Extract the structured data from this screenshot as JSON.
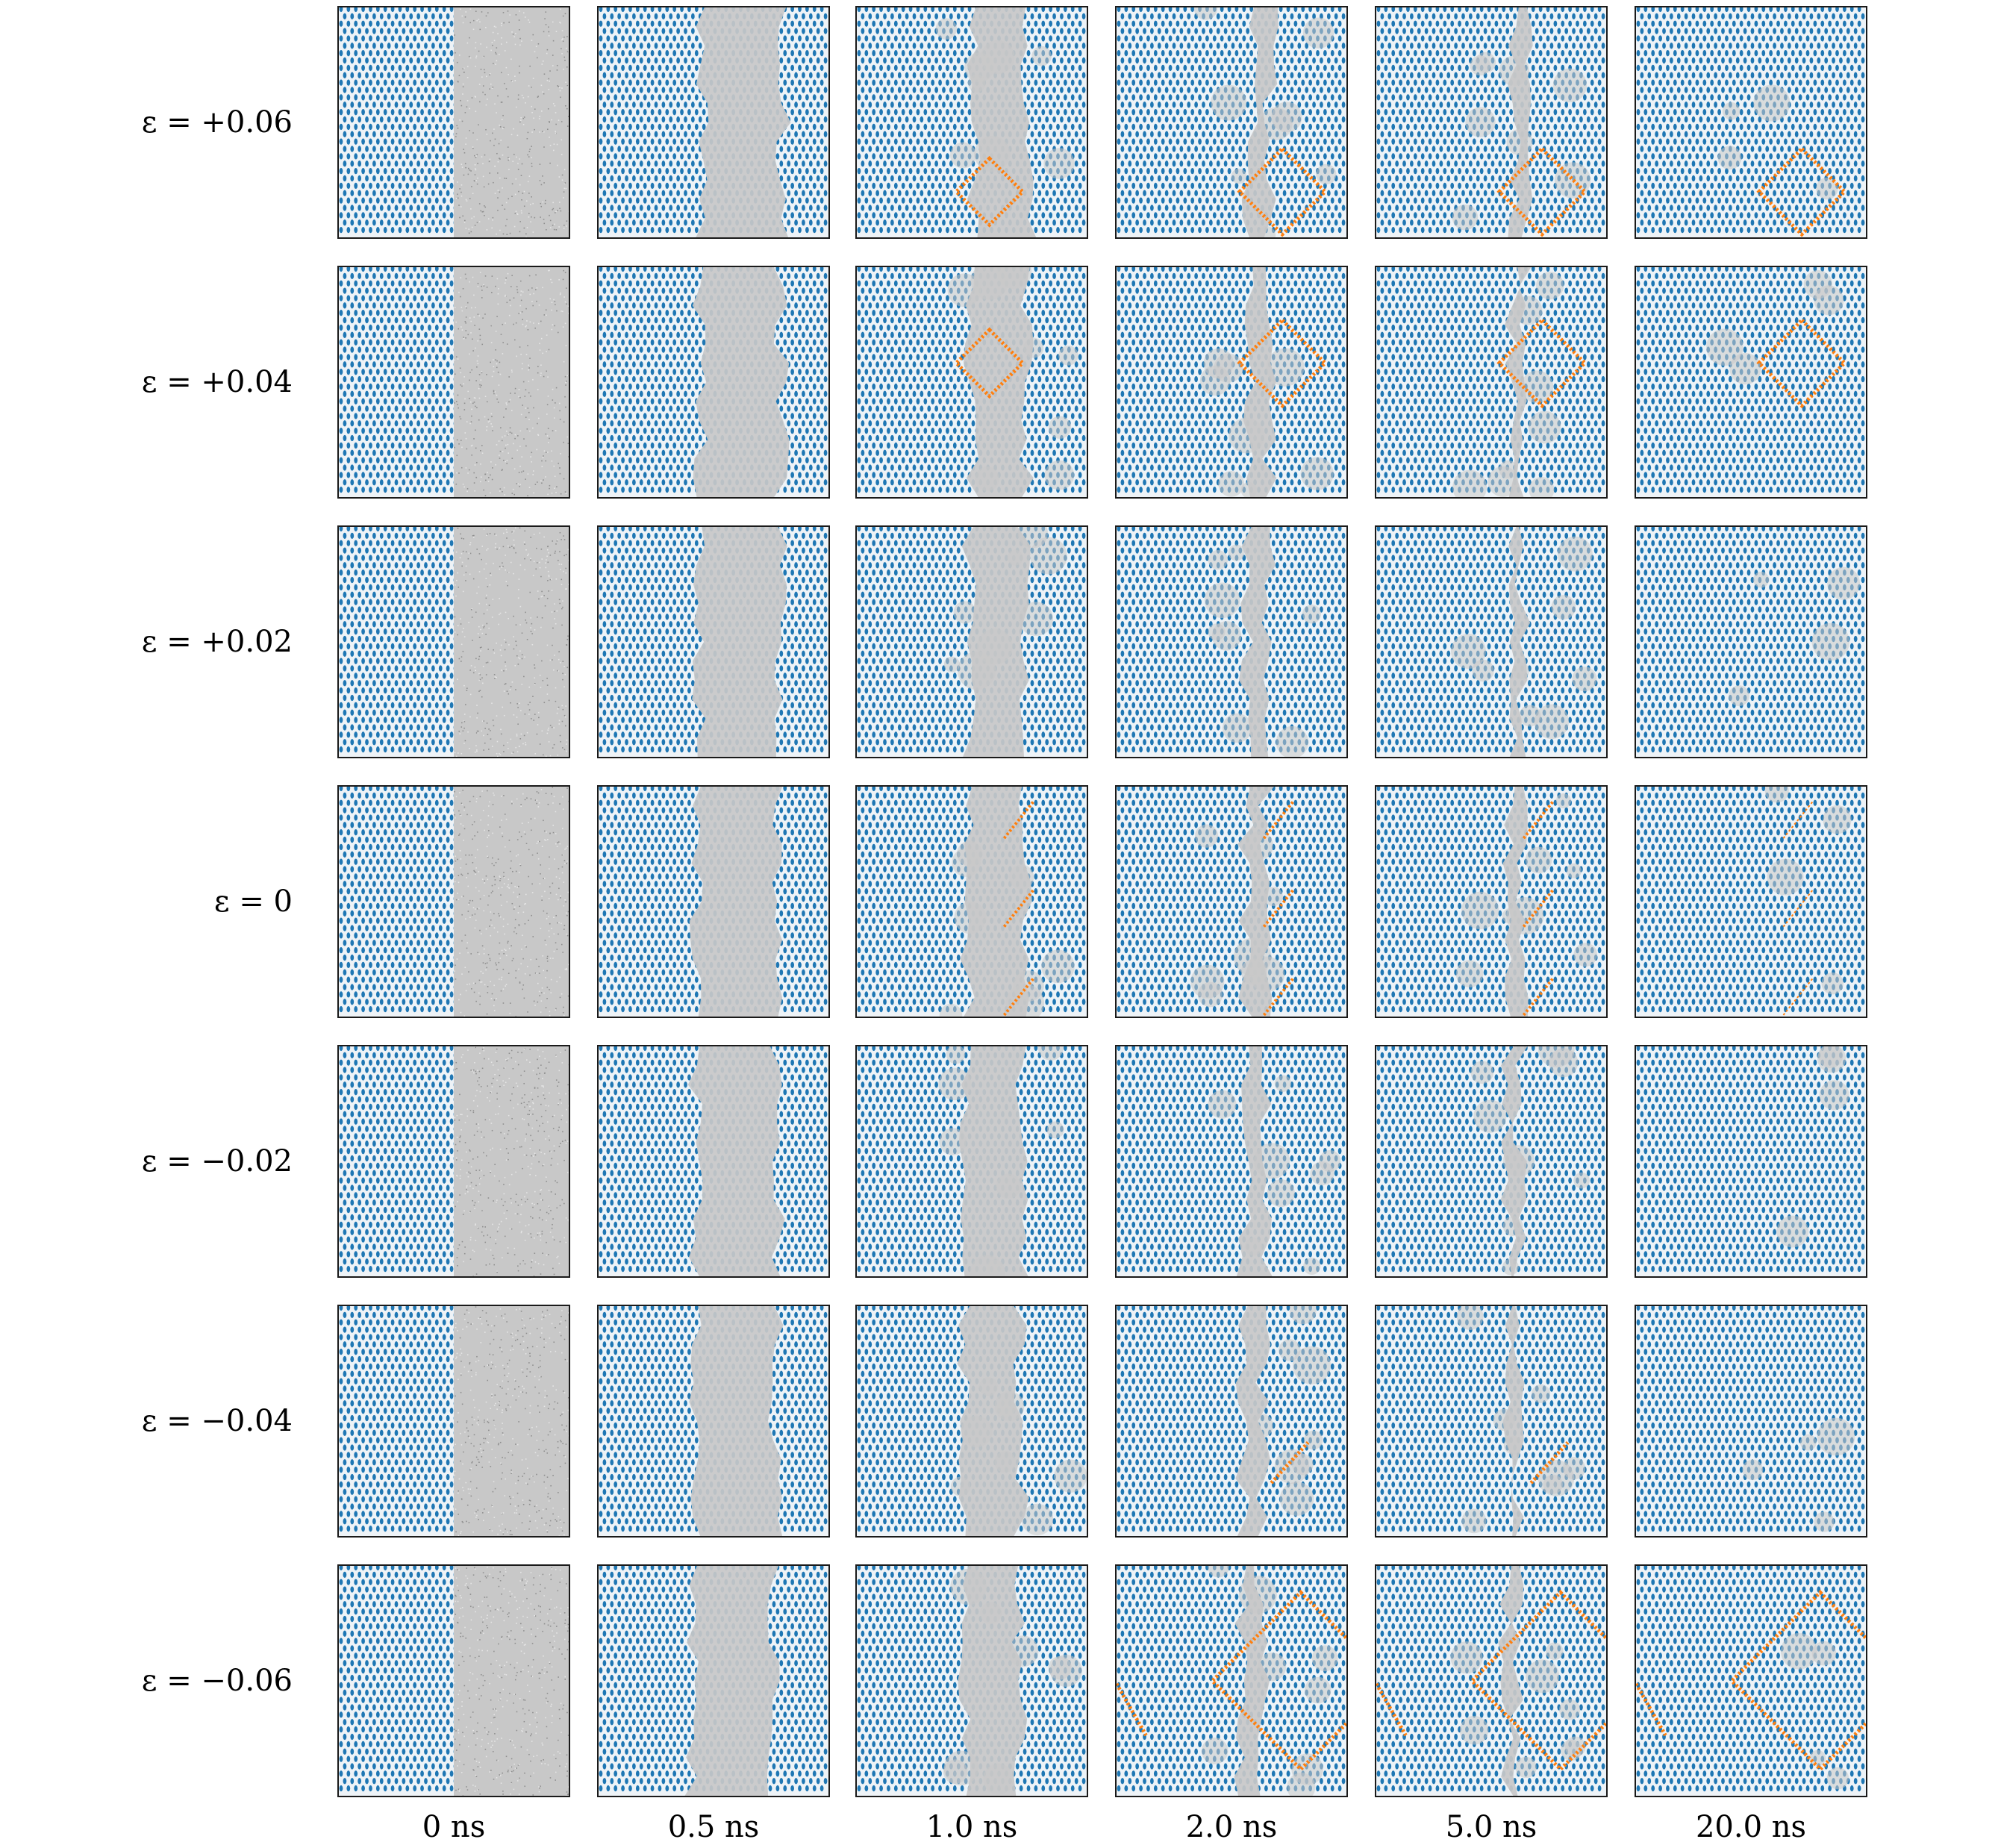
{
  "figure": {
    "rows": [
      {
        "label": "ε = +0.06",
        "strain": 0.06
      },
      {
        "label": "ε = +0.04",
        "strain": 0.04
      },
      {
        "label": "ε = +0.02",
        "strain": 0.02
      },
      {
        "label": "ε = 0",
        "strain": 0
      },
      {
        "label": "ε = −0.02",
        "strain": -0.02
      },
      {
        "label": "ε = −0.04",
        "strain": -0.04
      },
      {
        "label": "ε = −0.06",
        "strain": -0.06
      }
    ],
    "columns": [
      {
        "label": "0 ns",
        "time_ns": 0
      },
      {
        "label": "0.5 ns",
        "time_ns": 0.5
      },
      {
        "label": "1.0 ns",
        "time_ns": 1.0
      },
      {
        "label": "2.0 ns",
        "time_ns": 2.0
      },
      {
        "label": "5.0 ns",
        "time_ns": 5.0
      },
      {
        "label": "20.0 ns",
        "time_ns": 20.0
      }
    ],
    "colors": {
      "crystal": "#1f77b4",
      "amorphous": "#c8c8c8",
      "defect": "#ff7f0e",
      "background": "#ffffff",
      "frame": "#1a1a1a"
    }
  }
}
